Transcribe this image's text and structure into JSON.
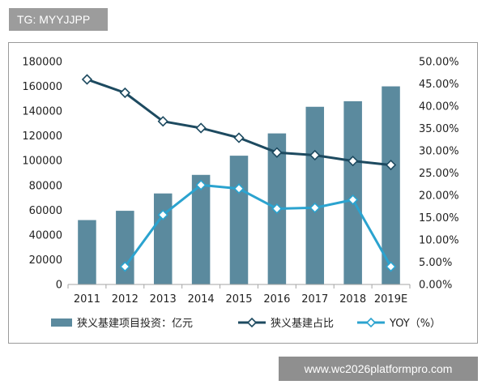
{
  "watermark_top": "TG: MYYJJPP",
  "watermark_bottom": "www.wc2026platformpro.com",
  "colors": {
    "bar": "#5b8a9e",
    "line_ratio": "#1d4a60",
    "line_yoy": "#2ba3cf",
    "axis": "#a6a6a6"
  },
  "chart_data": {
    "type": "bar",
    "categories": [
      "2011",
      "2012",
      "2013",
      "2014",
      "2015",
      "2016",
      "2017",
      "2018",
      "2019E"
    ],
    "ylim": [
      0,
      180000
    ],
    "y2lim": [
      0,
      0.5
    ],
    "yticks": [
      "0",
      "20000",
      "40000",
      "60000",
      "80000",
      "100000",
      "120000",
      "140000",
      "160000",
      "180000"
    ],
    "y2ticks": [
      "0.00%",
      "5.00%",
      "10.00%",
      "15.00%",
      "20.00%",
      "25.00%",
      "30.00%",
      "35.00%",
      "40.00%",
      "45.00%",
      "50.00%"
    ],
    "grid": false,
    "legend_position": "bottom",
    "series": [
      {
        "name": "狭义基建项目投资：亿元",
        "type": "bar",
        "axis": "left",
        "values": [
          52000,
          59500,
          73500,
          88500,
          104000,
          122000,
          143500,
          148000,
          160000
        ]
      },
      {
        "name": "狭义基建占比",
        "type": "line",
        "axis": "right",
        "values": [
          0.46,
          0.43,
          0.366,
          0.351,
          0.329,
          0.296,
          0.29,
          0.277,
          0.268
        ]
      },
      {
        "name": "YOY（%）",
        "type": "line",
        "axis": "right",
        "values": [
          null,
          0.04,
          0.156,
          0.223,
          0.215,
          0.17,
          0.172,
          0.19,
          0.04
        ]
      }
    ]
  }
}
